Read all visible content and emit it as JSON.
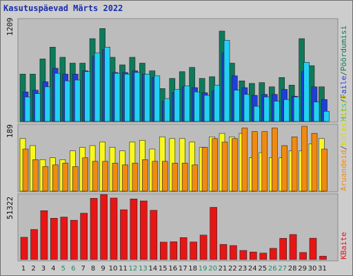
{
  "title": "Kasutuspäevad Märts 2022",
  "colors": {
    "page_views": "#0e7a5a",
    "files": "#1e3fd8",
    "hits": "#22d0f5",
    "visits": "#f8f820",
    "sites": "#f08a10",
    "kbytes": "#e81515",
    "weekend_day": "#1f8a6b",
    "weekday_day": "#1a1a1a"
  },
  "chart_data": [
    {
      "type": "bar",
      "title": "",
      "ylabel": "1209",
      "ymax": 1209,
      "categories": [
        "1",
        "2",
        "3",
        "4",
        "5",
        "6",
        "7",
        "8",
        "9",
        "10",
        "11",
        "12",
        "13",
        "14",
        "15",
        "16",
        "17",
        "18",
        "19",
        "20",
        "21",
        "22",
        "23",
        "24",
        "25",
        "26",
        "27",
        "28",
        "29",
        "30",
        "31"
      ],
      "weekend_days": [
        "5",
        "6",
        "12",
        "13",
        "19",
        "20",
        "26",
        "27"
      ],
      "series": [
        {
          "name": "Pöördumisi",
          "values": [
            560,
            560,
            740,
            880,
            760,
            690,
            690,
            980,
            1100,
            760,
            670,
            760,
            690,
            600,
            390,
            510,
            590,
            640,
            510,
            530,
            1070,
            690,
            480,
            450,
            460,
            410,
            520,
            430,
            980,
            660,
            410
          ]
        },
        {
          "name": "Faile",
          "values": [
            350,
            370,
            470,
            630,
            560,
            560,
            600,
            770,
            850,
            580,
            580,
            600,
            560,
            520,
            240,
            340,
            410,
            400,
            340,
            360,
            810,
            540,
            400,
            310,
            320,
            320,
            380,
            300,
            590,
            410,
            260
          ]
        },
        {
          "name": "Hits",
          "values": [
            290,
            330,
            410,
            570,
            480,
            490,
            590,
            810,
            880,
            570,
            560,
            580,
            560,
            540,
            270,
            380,
            420,
            350,
            310,
            430,
            960,
            370,
            320,
            180,
            290,
            240,
            260,
            290,
            700,
            230,
            120
          ]
        }
      ]
    },
    {
      "type": "bar",
      "title": "",
      "ylabel": "189",
      "ymax": 189,
      "categories": [
        "1",
        "2",
        "3",
        "4",
        "5",
        "6",
        "7",
        "8",
        "9",
        "10",
        "11",
        "12",
        "13",
        "14",
        "15",
        "16",
        "17",
        "18",
        "19",
        "20",
        "21",
        "22",
        "23",
        "24",
        "25",
        "26",
        "27",
        "28",
        "29",
        "30",
        "31"
      ],
      "series": [
        {
          "name": "Külastajaid",
          "values": [
            150,
            130,
            90,
            95,
            90,
            115,
            125,
            130,
            140,
            125,
            115,
            140,
            145,
            120,
            155,
            150,
            150,
            140,
            125,
            155,
            165,
            155,
            165,
            95,
            110,
            95,
            95,
            115,
            115,
            135,
            150
          ]
        },
        {
          "name": "Aruandeid",
          "values": [
            120,
            90,
            70,
            75,
            80,
            70,
            95,
            85,
            85,
            80,
            75,
            80,
            90,
            85,
            85,
            80,
            80,
            75,
            125,
            150,
            140,
            150,
            180,
            170,
            170,
            180,
            130,
            155,
            185,
            165,
            120
          ]
        }
      ]
    },
    {
      "type": "bar",
      "title": "",
      "ylabel": "51322",
      "ymax": 51322,
      "categories": [
        "1",
        "2",
        "3",
        "4",
        "5",
        "6",
        "7",
        "8",
        "9",
        "10",
        "11",
        "12",
        "13",
        "14",
        "15",
        "16",
        "17",
        "18",
        "19",
        "20",
        "21",
        "22",
        "23",
        "24",
        "25",
        "26",
        "27",
        "28",
        "29",
        "30",
        "31"
      ],
      "series": [
        {
          "name": "KBaite",
          "values": [
            17500,
            23700,
            38600,
            32600,
            33500,
            31000,
            36600,
            48400,
            51322,
            48600,
            39300,
            47900,
            46300,
            38900,
            13700,
            14000,
            17300,
            13800,
            19300,
            41200,
            11900,
            11000,
            7100,
            5900,
            5000,
            8800,
            16700,
            19700,
            5500,
            16800,
            2600
          ]
        }
      ]
    }
  ],
  "legend": {
    "right_top": [
      "Pöördumisi",
      "Faile",
      "Hits"
    ],
    "right_middle": [
      "Külastajaid",
      "Aruandeid"
    ],
    "right_bottom": [
      "KBaite"
    ],
    "separator": "/"
  }
}
